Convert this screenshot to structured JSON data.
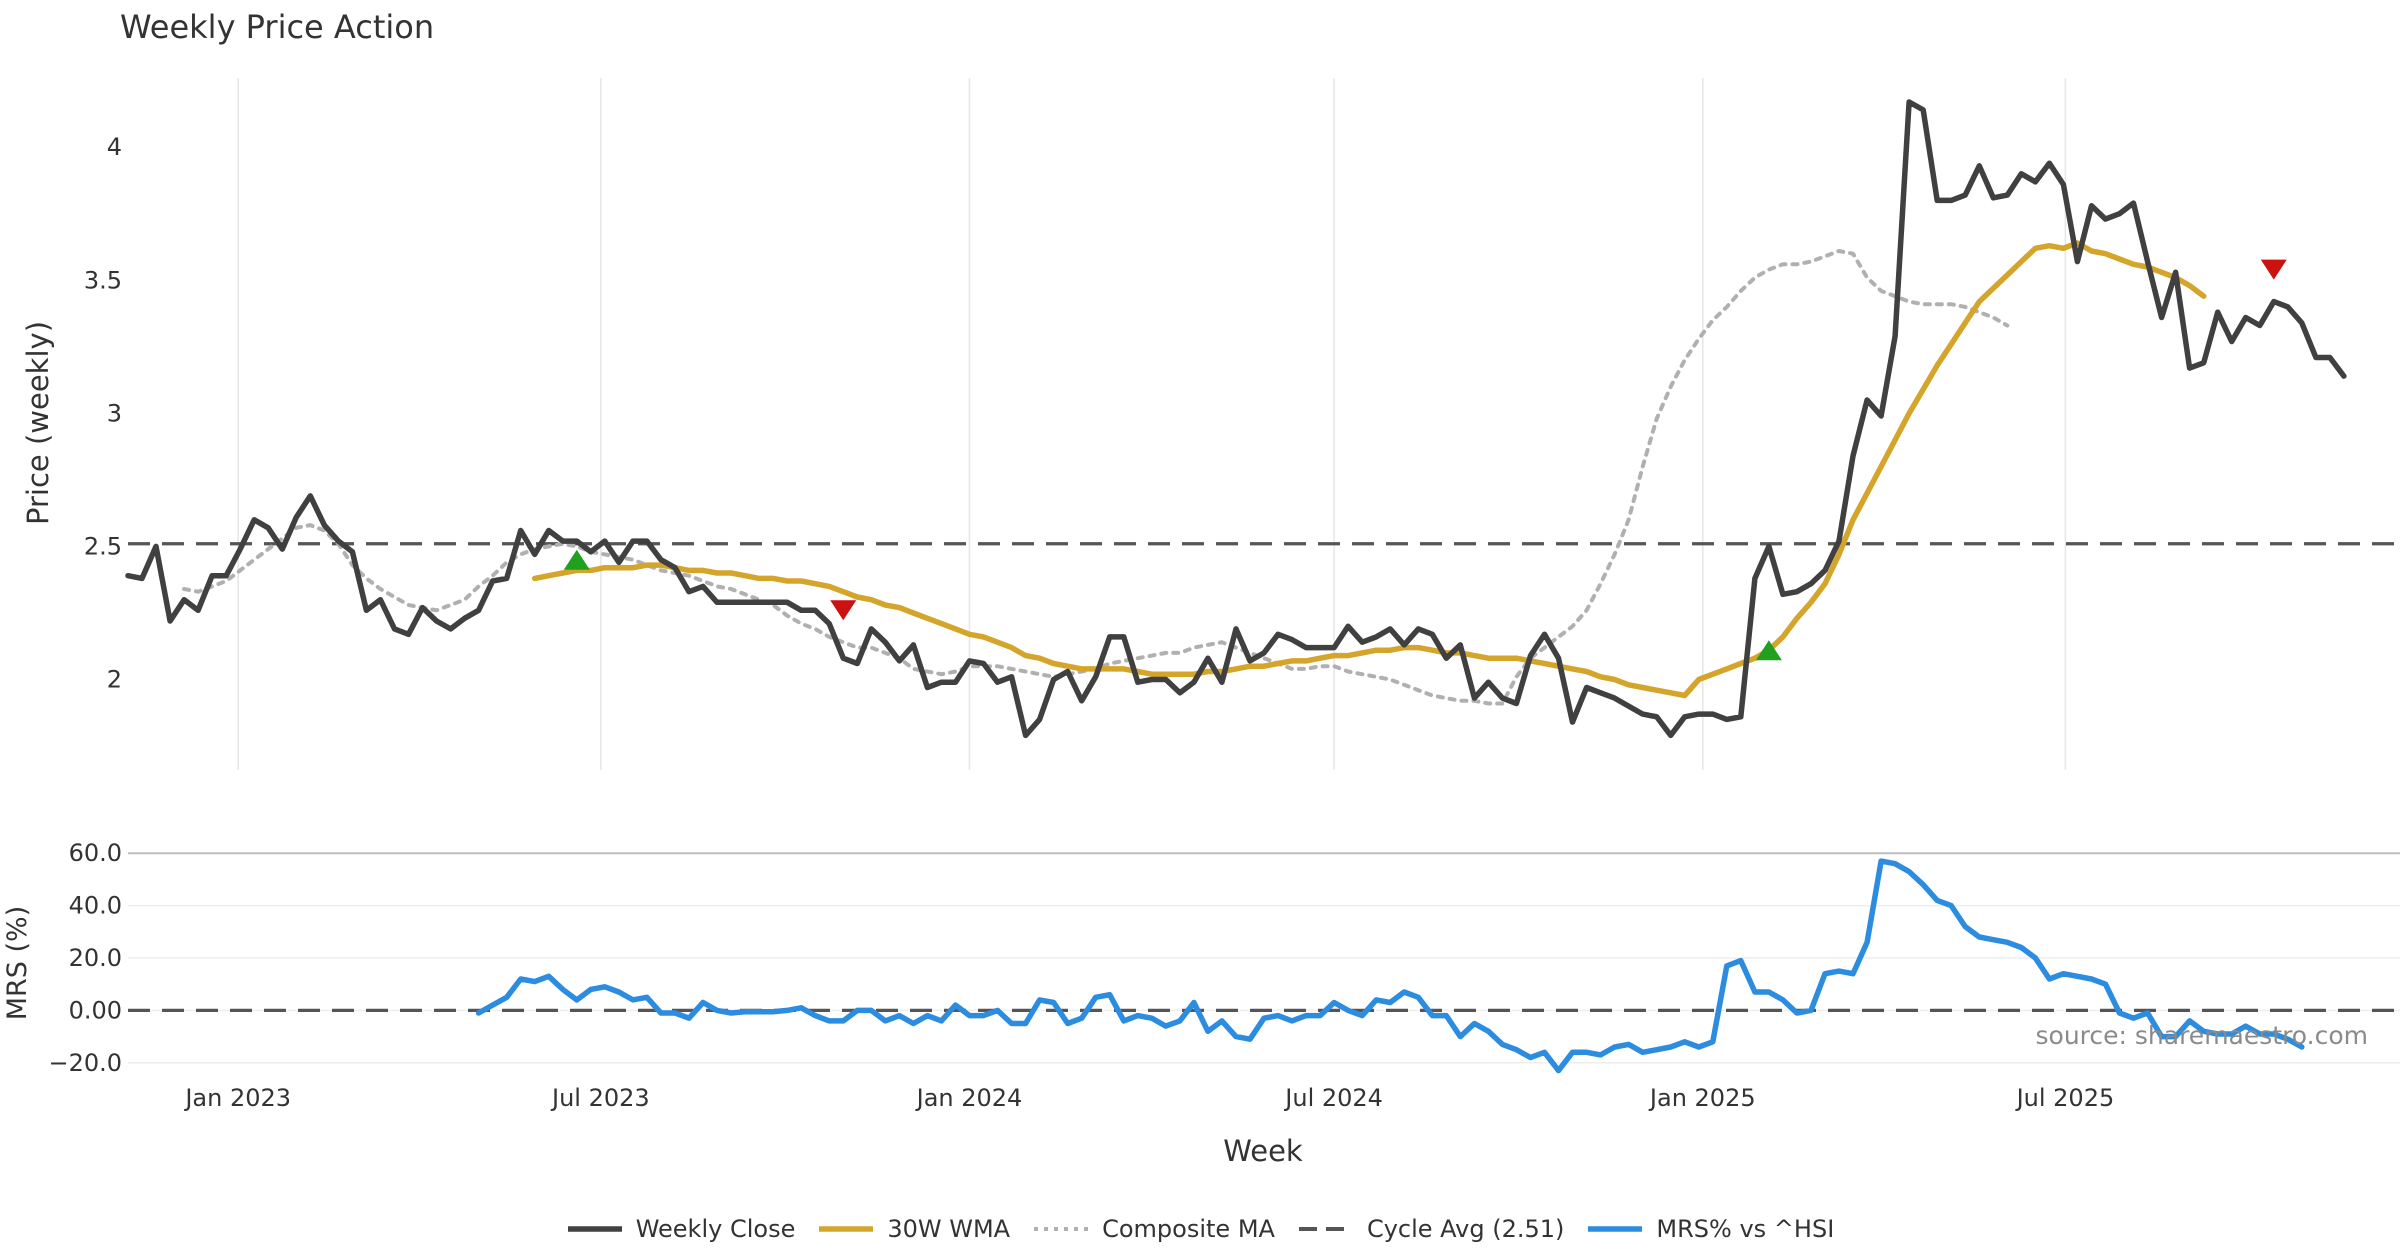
{
  "chart_data": [
    {
      "type": "line",
      "title": "Weekly Price Action",
      "xlabel": "",
      "ylabel": "Price (weekly)",
      "x_start": "2022-11-07",
      "x_step_days": 7,
      "xlim": [
        "2022-11-07",
        "2025-12-15"
      ],
      "ylim": [
        1.66,
        4.26
      ],
      "y_ticks": [
        "2",
        "2.5",
        "3",
        "3.5",
        "4"
      ],
      "grid": "vertical",
      "series": [
        {
          "name": "Weekly Close",
          "color": "#404040",
          "style": "solid",
          "values": [
            2.39,
            2.38,
            2.5,
            2.22,
            2.3,
            2.26,
            2.39,
            2.39,
            2.49,
            2.6,
            2.57,
            2.49,
            2.61,
            2.69,
            2.58,
            2.52,
            2.48,
            2.26,
            2.3,
            2.19,
            2.17,
            2.27,
            2.22,
            2.19,
            2.23,
            2.26,
            2.37,
            2.38,
            2.56,
            2.47,
            2.56,
            2.52,
            2.52,
            2.48,
            2.52,
            2.44,
            2.52,
            2.52,
            2.45,
            2.42,
            2.33,
            2.35,
            2.29,
            2.29,
            2.29,
            2.29,
            2.29,
            2.29,
            2.26,
            2.26,
            2.21,
            2.08,
            2.06,
            2.19,
            2.14,
            2.07,
            2.13,
            1.97,
            1.99,
            1.99,
            2.07,
            2.06,
            1.99,
            2.01,
            1.79,
            1.85,
            2.0,
            2.03,
            1.92,
            2.01,
            2.16,
            2.16,
            1.99,
            2.0,
            2.0,
            1.95,
            1.99,
            2.08,
            1.99,
            2.19,
            2.07,
            2.1,
            2.17,
            2.15,
            2.12,
            2.12,
            2.12,
            2.2,
            2.14,
            2.16,
            2.19,
            2.13,
            2.19,
            2.17,
            2.08,
            2.13,
            1.93,
            1.99,
            1.93,
            1.91,
            2.09,
            2.17,
            2.08,
            1.84,
            1.97,
            1.95,
            1.93,
            1.9,
            1.87,
            1.86,
            1.79,
            1.86,
            1.87,
            1.87,
            1.85,
            1.86,
            2.38,
            2.5,
            2.32,
            2.33,
            2.36,
            2.41,
            2.52,
            2.84,
            3.05,
            2.99,
            3.29,
            4.17,
            4.14,
            3.8,
            3.8,
            3.82,
            3.93,
            3.81,
            3.82,
            3.9,
            3.87,
            3.94,
            3.86,
            3.57,
            3.78,
            3.73,
            3.75,
            3.79,
            3.57,
            3.36,
            3.53,
            3.17,
            3.19,
            3.38,
            3.27,
            3.36,
            3.33,
            3.42,
            3.4,
            3.34,
            3.21,
            3.21,
            3.14
          ]
        },
        {
          "name": "30W WMA",
          "color": "#D4A52A",
          "style": "solid",
          "start_index": 29,
          "values": [
            2.38,
            2.39,
            2.4,
            2.41,
            2.41,
            2.42,
            2.42,
            2.42,
            2.43,
            2.43,
            2.42,
            2.41,
            2.41,
            2.4,
            2.4,
            2.39,
            2.38,
            2.38,
            2.37,
            2.37,
            2.36,
            2.35,
            2.33,
            2.31,
            2.3,
            2.28,
            2.27,
            2.25,
            2.23,
            2.21,
            2.19,
            2.17,
            2.16,
            2.14,
            2.12,
            2.09,
            2.08,
            2.06,
            2.05,
            2.04,
            2.04,
            2.04,
            2.04,
            2.03,
            2.02,
            2.02,
            2.02,
            2.02,
            2.03,
            2.03,
            2.04,
            2.05,
            2.05,
            2.06,
            2.07,
            2.07,
            2.08,
            2.09,
            2.09,
            2.1,
            2.11,
            2.11,
            2.12,
            2.12,
            2.11,
            2.1,
            2.1,
            2.09,
            2.08,
            2.08,
            2.08,
            2.07,
            2.06,
            2.05,
            2.04,
            2.03,
            2.01,
            2.0,
            1.98,
            1.97,
            1.96,
            1.95,
            1.94,
            2.0,
            2.02,
            2.04,
            2.06,
            2.08,
            2.11,
            2.16,
            2.23,
            2.29,
            2.36,
            2.47,
            2.6,
            2.7,
            2.8,
            2.9,
            3.0,
            3.09,
            3.18,
            3.26,
            3.34,
            3.42,
            3.47,
            3.52,
            3.57,
            3.62,
            3.63,
            3.62,
            3.64,
            3.61,
            3.6,
            3.58,
            3.56,
            3.55,
            3.53,
            3.51,
            3.48,
            3.44
          ]
        },
        {
          "name": "Composite MA",
          "color": "#B0B0B0",
          "style": "dotted",
          "start_index": 4,
          "values": [
            2.34,
            2.33,
            2.35,
            2.37,
            2.41,
            2.45,
            2.49,
            2.53,
            2.57,
            2.58,
            2.56,
            2.51,
            2.43,
            2.38,
            2.34,
            2.31,
            2.28,
            2.27,
            2.26,
            2.28,
            2.3,
            2.35,
            2.39,
            2.44,
            2.47,
            2.49,
            2.5,
            2.51,
            2.5,
            2.48,
            2.47,
            2.46,
            2.45,
            2.43,
            2.41,
            2.4,
            2.39,
            2.37,
            2.35,
            2.34,
            2.32,
            2.3,
            2.28,
            2.24,
            2.21,
            2.19,
            2.16,
            2.14,
            2.12,
            2.12,
            2.1,
            2.08,
            2.04,
            2.03,
            2.02,
            2.03,
            2.05,
            2.05,
            2.05,
            2.04,
            2.03,
            2.02,
            2.01,
            2.02,
            2.03,
            2.04,
            2.06,
            2.07,
            2.08,
            2.09,
            2.1,
            2.1,
            2.12,
            2.13,
            2.14,
            2.12,
            2.1,
            2.08,
            2.06,
            2.04,
            2.04,
            2.05,
            2.05,
            2.03,
            2.02,
            2.01,
            2.0,
            1.98,
            1.96,
            1.94,
            1.93,
            1.92,
            1.92,
            1.91,
            1.91,
            2.01,
            2.08,
            2.12,
            2.16,
            2.2,
            2.26,
            2.36,
            2.47,
            2.6,
            2.8,
            2.98,
            3.1,
            3.2,
            3.28,
            3.35,
            3.4,
            3.46,
            3.51,
            3.54,
            3.56,
            3.56,
            3.57,
            3.59,
            3.61,
            3.6,
            3.51,
            3.46,
            3.44,
            3.42,
            3.41,
            3.41,
            3.41,
            3.4,
            3.38,
            3.36,
            3.33
          ]
        },
        {
          "name": "Cycle Avg (2.51)",
          "color": "#555555",
          "style": "dashed",
          "constant": 2.51
        }
      ],
      "markers": [
        {
          "type": "buy",
          "index": 32,
          "value": 2.45,
          "color": "#1FA01F"
        },
        {
          "type": "sell",
          "index": 51,
          "value": 2.26,
          "color": "#CC1111"
        },
        {
          "type": "buy",
          "index": 117,
          "value": 2.11,
          "color": "#1FA01F"
        },
        {
          "type": "sell",
          "index": 153,
          "value": 3.54,
          "color": "#CC1111"
        }
      ]
    },
    {
      "type": "line",
      "title": "",
      "xlabel": "Week",
      "ylabel": "MRS (%)",
      "x_start": "2022-11-07",
      "x_step_days": 7,
      "xlim": [
        "2022-11-07",
        "2025-12-15"
      ],
      "ylim": [
        -22,
        62
      ],
      "y_ticks": [
        "−20.0",
        "0.00",
        "20.0",
        "40.0",
        "60.0"
      ],
      "x_ticks": [
        "Jan 2023",
        "Jul 2023",
        "Jan 2024",
        "Jul 2024",
        "Jan 2025",
        "Jul 2025"
      ],
      "x_tick_dates": [
        "2023-01-01",
        "2023-07-01",
        "2024-01-01",
        "2024-07-01",
        "2025-01-01",
        "2025-07-01"
      ],
      "series": [
        {
          "name": "MRS% vs ^HSI",
          "color": "#2B8CE0",
          "style": "solid",
          "start_index": 25,
          "values": [
            -1,
            2,
            5,
            12,
            11,
            13,
            8,
            4,
            8,
            9,
            7,
            4,
            5,
            -1,
            -1,
            -3,
            3,
            0,
            -1,
            -0.5,
            -0.5,
            -0.5,
            0,
            1,
            -2,
            -4,
            -4,
            0,
            0,
            -4,
            -2,
            -5,
            -2,
            -4,
            2,
            -2,
            -2,
            0,
            -5,
            -5,
            4,
            3,
            -5,
            -3,
            5,
            6,
            -4,
            -2,
            -3,
            -6,
            -4,
            3,
            -8,
            -4,
            -10,
            -11,
            -3,
            -2,
            -4,
            -2,
            -2,
            3,
            0,
            -2,
            4,
            3,
            7,
            5,
            -2,
            -2,
            -10,
            -5,
            -8,
            -13,
            -15,
            -18,
            -16,
            -23,
            -16,
            -16,
            -17,
            -14,
            -13,
            -16,
            -15,
            -14,
            -12,
            -14,
            -12,
            17,
            19,
            7,
            7,
            4,
            -1,
            0,
            14,
            15,
            14,
            26,
            57,
            56,
            53,
            48,
            42,
            40,
            32,
            28,
            27,
            26,
            24,
            20,
            12,
            14,
            13,
            12,
            10,
            -1,
            -3,
            -1,
            -10,
            -10,
            -4,
            -8,
            -9,
            -9,
            -6,
            -9,
            -9,
            -11,
            -14
          ],
          "y_range": [
            -23,
            57
          ]
        },
        {
          "name": "zero-line",
          "color": "#555555",
          "style": "dashed",
          "constant": 0
        }
      ]
    }
  ],
  "source_note": "source: sharemaestro.com",
  "legend": [
    {
      "label": "Weekly Close",
      "color": "#404040",
      "style": "solid"
    },
    {
      "label": "30W WMA",
      "color": "#D4A52A",
      "style": "solid"
    },
    {
      "label": "Composite MA",
      "color": "#B0B0B0",
      "style": "dotted"
    },
    {
      "label": "Cycle Avg (2.51)",
      "color": "#555555",
      "style": "dashed"
    },
    {
      "label": "MRS% vs ^HSI",
      "color": "#2B8CE0",
      "style": "solid"
    }
  ]
}
